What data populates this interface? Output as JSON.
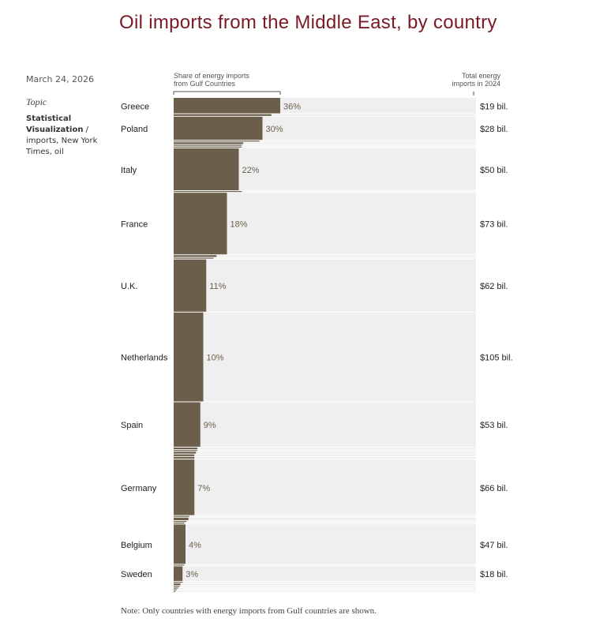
{
  "page": {
    "title": "Oil imports from the Middle East, by country",
    "date": "March 24, 2026",
    "topic_label": "Topic",
    "topics": [
      "Statistical Visualization",
      "imports",
      "New York Times",
      "oil"
    ],
    "note": "Note: Only countries with energy imports from Gulf countries are shown."
  },
  "colors": {
    "bar": "#6b5f4b",
    "background_band": "#efefef",
    "title": "#7a1a24",
    "pct_text": "#6b5f4b"
  },
  "chart_data": {
    "type": "bar",
    "orientation": "horizontal",
    "bar_height_encodes": "total_energy_imports_2024",
    "share_header": "Share of energy imports from Gulf Countries",
    "total_header": "Total energy imports in 2024",
    "xlim": [
      0,
      100
    ],
    "rows": [
      {
        "label": "Greece",
        "share": 36,
        "share_label": "36%",
        "total": 19,
        "total_label": "$19 bil."
      },
      {
        "label": "",
        "share": 33,
        "total": 3
      },
      {
        "label": "Poland",
        "share": 30,
        "share_label": "30%",
        "total": 28,
        "total_label": "$28 bil."
      },
      {
        "label": "",
        "share": 29,
        "total": 2
      },
      {
        "label": "",
        "share": 23.5,
        "total": 3
      },
      {
        "label": "",
        "share": 23,
        "total": 2
      },
      {
        "label": "",
        "share": 23,
        "total": 2
      },
      {
        "label": "Italy",
        "share": 22,
        "share_label": "22%",
        "total": 50,
        "total_label": "$50 bil."
      },
      {
        "label": "",
        "share": 23,
        "total": 2
      },
      {
        "label": "France",
        "share": 18,
        "share_label": "18%",
        "total": 73,
        "total_label": "$73 bil."
      },
      {
        "label": "",
        "share": 14.5,
        "total": 3
      },
      {
        "label": "",
        "share": 13.5,
        "total": 2
      },
      {
        "label": "U.K.",
        "share": 11,
        "share_label": "11%",
        "total": 62,
        "total_label": "$62 bil."
      },
      {
        "label": "Netherlands",
        "share": 10,
        "share_label": "10%",
        "total": 105,
        "total_label": "$105 bil."
      },
      {
        "label": "Spain",
        "share": 9,
        "share_label": "9%",
        "total": 53,
        "total_label": "$53 bil."
      },
      {
        "label": "",
        "share": 8,
        "total": 3
      },
      {
        "label": "",
        "share": 8,
        "total": 2
      },
      {
        "label": "",
        "share": 7.5,
        "total": 3
      },
      {
        "label": "",
        "share": 7,
        "total": 3
      },
      {
        "label": "",
        "share": 7,
        "total": 3
      },
      {
        "label": "Germany",
        "share": 7,
        "share_label": "7%",
        "total": 66,
        "total_label": "$66 bil."
      },
      {
        "label": "",
        "share": 5.3,
        "total": 2
      },
      {
        "label": "",
        "share": 5,
        "total": 4
      },
      {
        "label": "",
        "share": 4.3,
        "total": 2
      },
      {
        "label": "",
        "share": 3.7,
        "total": 2
      },
      {
        "label": "Belgium",
        "share": 4,
        "share_label": "4%",
        "total": 47,
        "total_label": "$47 bil."
      },
      {
        "label": "",
        "share": 3.5,
        "total": 2
      },
      {
        "label": "Sweden",
        "share": 3,
        "share_label": "3%",
        "total": 18,
        "total_label": "$18 bil."
      },
      {
        "label": "",
        "share": 3,
        "total": 2
      },
      {
        "label": "",
        "share": 2.3,
        "total": 3
      },
      {
        "label": "",
        "share": 2,
        "total": 2
      },
      {
        "label": "",
        "share": 1.5,
        "total": 2
      },
      {
        "label": "",
        "share": 1,
        "total": 2
      },
      {
        "label": "",
        "share": 0.5,
        "total": 2
      }
    ]
  }
}
